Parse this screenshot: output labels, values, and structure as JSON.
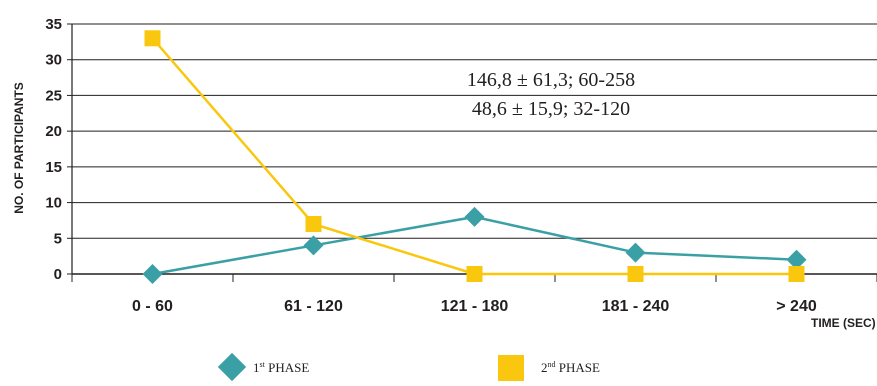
{
  "chart_data": {
    "type": "line",
    "categories": [
      "0 - 60",
      "61 - 120",
      "121 - 180",
      "181 - 240",
      "> 240"
    ],
    "series": [
      {
        "name_prefix": "1",
        "name_sup": "st",
        "name_suffix": " PHASE",
        "values": [
          0,
          4,
          8,
          3,
          2
        ],
        "color": "#3aa0a5",
        "marker": "diamond"
      },
      {
        "name_prefix": "2",
        "name_sup": "nd",
        "name_suffix": " PHASE",
        "values": [
          33,
          7,
          0,
          0,
          0
        ],
        "color": "#f9c80e",
        "marker": "square"
      }
    ],
    "ylabel": "NO. OF PARTICIPANTS",
    "xlabel": "TIME (SEC)",
    "ylim": [
      0,
      35
    ],
    "yticks": [
      0,
      5,
      10,
      15,
      20,
      25,
      30,
      35
    ],
    "grid": true,
    "annotations": [
      "146,8 ± 61,3; 60-258",
      "48,6 ± 15,9; 32-120"
    ],
    "legend_position": "bottom"
  }
}
